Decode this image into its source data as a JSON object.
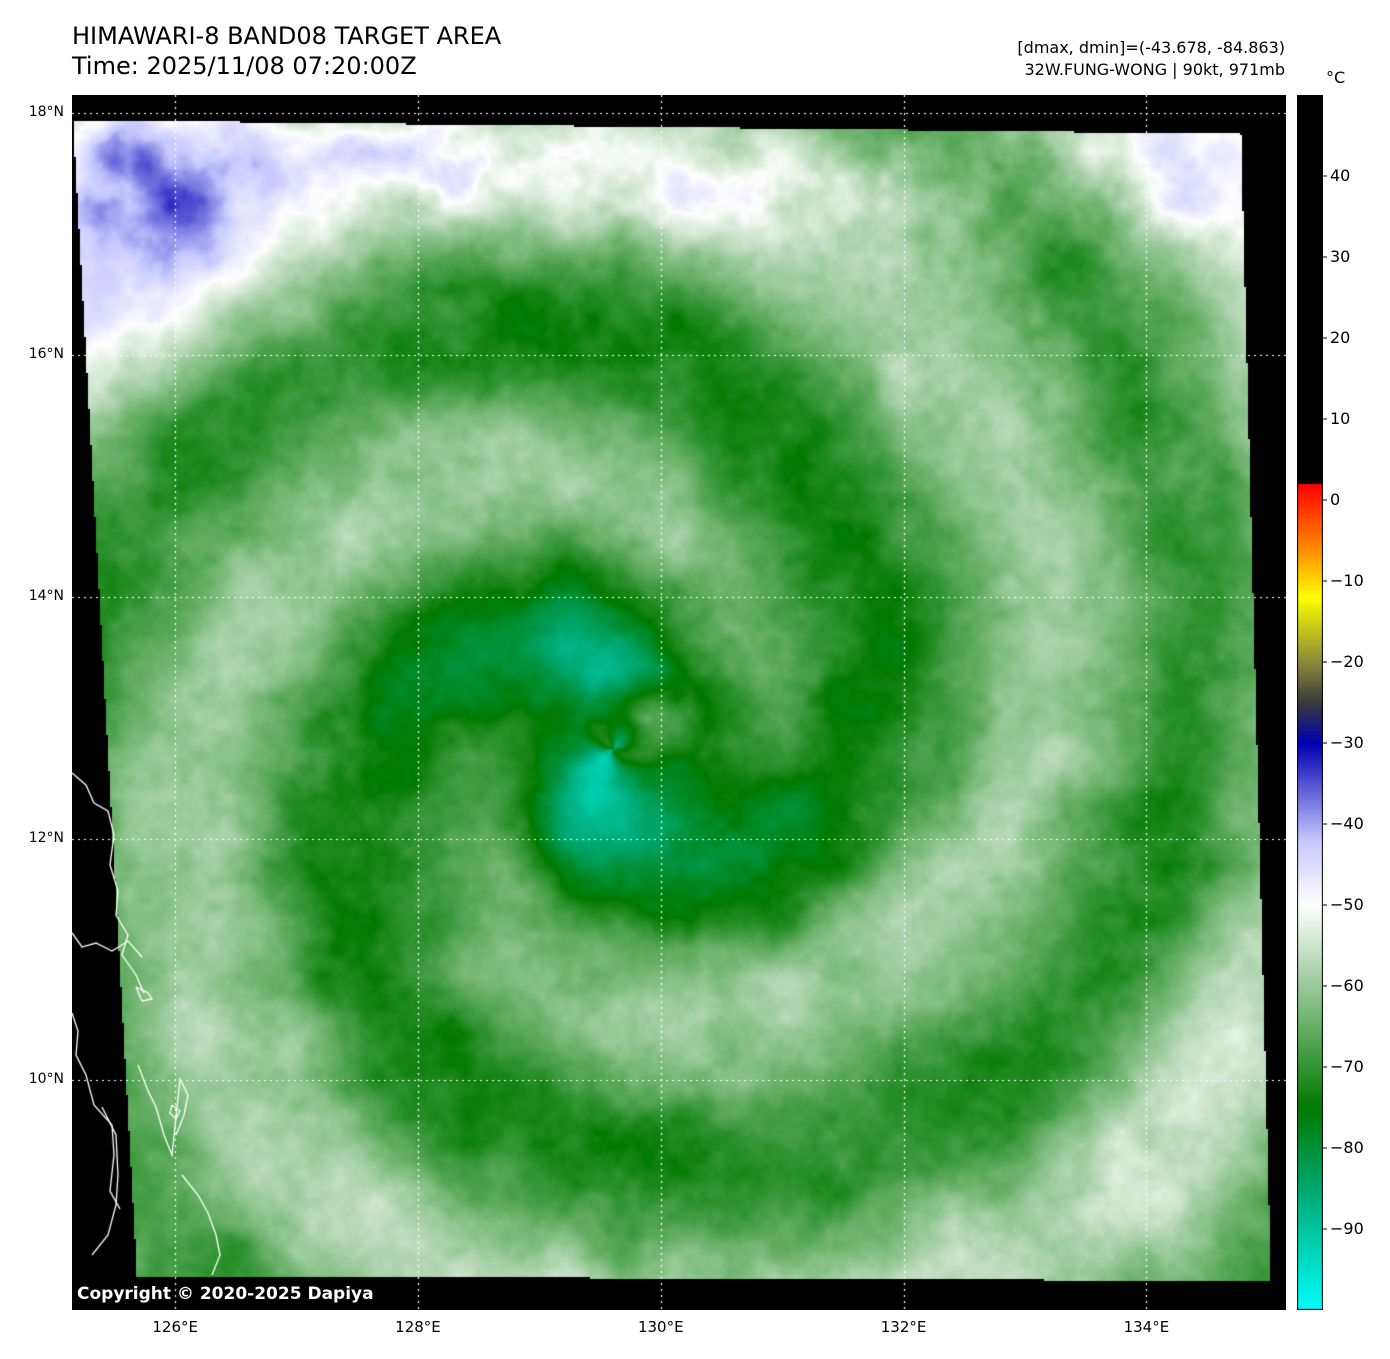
{
  "header": {
    "title_line1": "HIMAWARI-8 BAND08 TARGET AREA",
    "title_line2": "Time: 2025/11/08 07:20:00Z",
    "stats_line": "[dmax, dmin]=(-43.678, -84.863)",
    "storm_line": "32W.FUNG-WONG | 90kt, 971mb"
  },
  "map": {
    "extent": {
      "lon_min": 125.15,
      "lon_max": 135.15,
      "lat_min": 8.1,
      "lat_max": 18.15
    },
    "storm_center": {
      "lon": 129.6,
      "lat": 12.75
    },
    "grid": "dotted white",
    "latitude_ticks": [
      {
        "value": 18,
        "label": "18°N"
      },
      {
        "value": 16,
        "label": "16°N"
      },
      {
        "value": 14,
        "label": "14°N"
      },
      {
        "value": 12,
        "label": "12°N"
      },
      {
        "value": 10,
        "label": "10°N"
      }
    ],
    "longitude_ticks": [
      {
        "value": 126,
        "label": "126°E"
      },
      {
        "value": 128,
        "label": "128°E"
      },
      {
        "value": 130,
        "label": "130°E"
      },
      {
        "value": 132,
        "label": "132°E"
      },
      {
        "value": 134,
        "label": "134°E"
      }
    ],
    "copyright": "Copyright © 2020-2025 Dapiya"
  },
  "colorbar": {
    "unit": "°C",
    "min": -100,
    "max": 50,
    "ticks": [
      {
        "value": 40,
        "label": "40"
      },
      {
        "value": 30,
        "label": "30"
      },
      {
        "value": 20,
        "label": "20"
      },
      {
        "value": 10,
        "label": "10"
      },
      {
        "value": 0,
        "label": "0"
      },
      {
        "value": -10,
        "label": "−10"
      },
      {
        "value": -20,
        "label": "−20"
      },
      {
        "value": -30,
        "label": "−30"
      },
      {
        "value": -40,
        "label": "−40"
      },
      {
        "value": -50,
        "label": "−50"
      },
      {
        "value": -60,
        "label": "−60"
      },
      {
        "value": -70,
        "label": "−70"
      },
      {
        "value": -80,
        "label": "−80"
      },
      {
        "value": -90,
        "label": "−90"
      }
    ],
    "stops": [
      {
        "value": -100,
        "color": "#00ffff"
      },
      {
        "value": -85,
        "color": "#00a870"
      },
      {
        "value": -75,
        "color": "#007a00"
      },
      {
        "value": -50,
        "color": "#ffffff"
      },
      {
        "value": -42,
        "color": "#c8c8ff"
      },
      {
        "value": -30,
        "color": "#0000b4"
      },
      {
        "value": -25,
        "color": "#3a3a3a"
      },
      {
        "value": -20,
        "color": "#8a8a3a"
      },
      {
        "value": -12,
        "color": "#ffff00"
      },
      {
        "value": -6,
        "color": "#ff8c00"
      },
      {
        "value": 2,
        "color": "#ff0000"
      },
      {
        "value": 2.01,
        "color": "#000000"
      },
      {
        "value": 50,
        "color": "#000000"
      }
    ]
  }
}
